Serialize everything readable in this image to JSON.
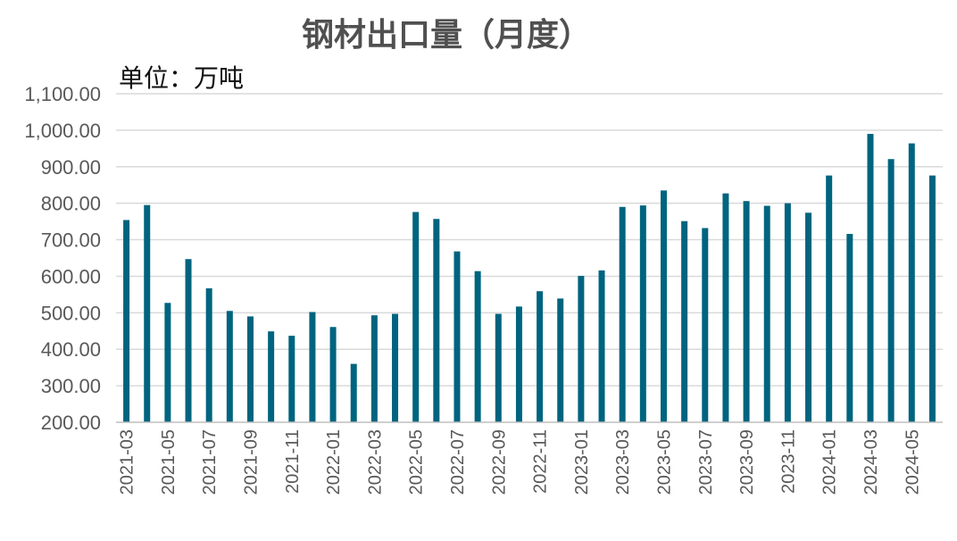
{
  "chart_data": {
    "type": "bar",
    "title": "钢材出口量（月度）",
    "unit_label": "单位：万吨",
    "ylim": [
      200,
      1100
    ],
    "ytick_step": 100,
    "ytick_labels": [
      "200.00",
      "300.00",
      "400.00",
      "500.00",
      "600.00",
      "700.00",
      "800.00",
      "900.00",
      "1,000.00",
      "1,100.00"
    ],
    "grid": true,
    "bar_color": "#00647f",
    "categories": [
      "2021-03",
      "2021-04",
      "2021-05",
      "2021-06",
      "2021-07",
      "2021-08",
      "2021-09",
      "2021-10",
      "2021-11",
      "2021-12",
      "2022-01",
      "2022-02",
      "2022-03",
      "2022-04",
      "2022-05",
      "2022-06",
      "2022-07",
      "2022-08",
      "2022-09",
      "2022-10",
      "2022-11",
      "2022-12",
      "2023-01",
      "2023-02",
      "2023-03",
      "2023-04",
      "2023-05",
      "2023-06",
      "2023-07",
      "2023-08",
      "2023-09",
      "2023-10",
      "2023-11",
      "2023-12",
      "2024-01",
      "2024-02",
      "2024-03",
      "2024-04",
      "2024-05",
      "2024-06"
    ],
    "xtick_labels_shown": [
      "2021-03",
      "2021-05",
      "2021-07",
      "2021-09",
      "2021-11",
      "2022-01",
      "2022-03",
      "2022-05",
      "2022-07",
      "2022-09",
      "2022-11",
      "2023-01",
      "2023-03",
      "2023-05",
      "2023-07",
      "2023-09",
      "2023-11",
      "2024-01",
      "2024-03",
      "2024-05"
    ],
    "values": [
      754,
      795,
      527,
      647,
      567,
      505,
      490,
      449,
      437,
      502,
      461,
      360,
      493,
      497,
      776,
      757,
      668,
      614,
      497,
      517,
      559,
      539,
      601,
      616,
      790,
      794,
      835,
      751,
      732,
      827,
      806,
      793,
      800,
      774,
      876,
      716,
      990,
      921,
      964,
      876
    ]
  }
}
